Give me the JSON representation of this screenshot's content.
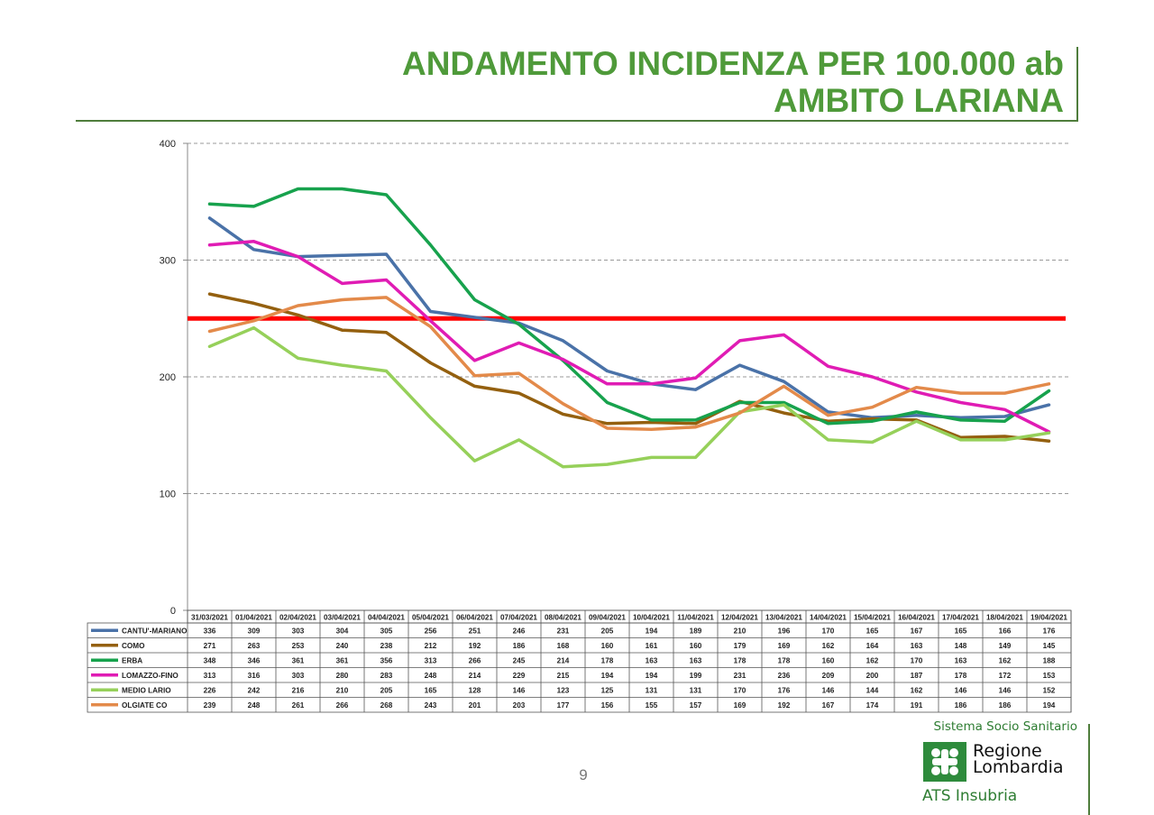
{
  "title": {
    "line1": "ANDAMENTO INCIDENZA PER 100.000 ab",
    "line2": "AMBITO LARIANA"
  },
  "page_number": "9",
  "logo": {
    "top_text": "Sistema Socio Sanitario",
    "region_line1": "Regione",
    "region_line2": "Lombardia",
    "ats": "ATS Insubria"
  },
  "colors": {
    "title": "#4f9a3a",
    "threshold": "#ff0000",
    "logo_green": "#2e8b3c"
  },
  "chart_data": {
    "type": "line",
    "categories": [
      "31/03/2021",
      "01/04/2021",
      "02/04/2021",
      "03/04/2021",
      "04/04/2021",
      "05/04/2021",
      "06/04/2021",
      "07/04/2021",
      "08/04/2021",
      "09/04/2021",
      "10/04/2021",
      "11/04/2021",
      "12/04/2021",
      "13/04/2021",
      "14/04/2021",
      "15/04/2021",
      "16/04/2021",
      "17/04/2021",
      "18/04/2021",
      "19/04/2021"
    ],
    "ylim": [
      0,
      400
    ],
    "yticks": [
      0,
      100,
      200,
      300,
      400
    ],
    "grid": true,
    "threshold": 250,
    "legend": "data-table",
    "series": [
      {
        "name": "CANTU'-MARIANO",
        "color": "#4a72a8",
        "values": [
          336,
          309,
          303,
          304,
          305,
          256,
          251,
          246,
          231,
          205,
          194,
          189,
          210,
          196,
          170,
          165,
          167,
          165,
          166,
          176
        ]
      },
      {
        "name": "COMO",
        "color": "#94600f",
        "values": [
          271,
          263,
          253,
          240,
          238,
          212,
          192,
          186,
          168,
          160,
          161,
          160,
          179,
          169,
          162,
          164,
          163,
          148,
          149,
          145
        ]
      },
      {
        "name": "ERBA",
        "color": "#17a24d",
        "values": [
          348,
          346,
          361,
          361,
          356,
          313,
          266,
          245,
          214,
          178,
          163,
          163,
          178,
          178,
          160,
          162,
          170,
          163,
          162,
          188
        ]
      },
      {
        "name": "LOMAZZO-FINO",
        "color": "#e01cb4",
        "values": [
          313,
          316,
          303,
          280,
          283,
          248,
          214,
          229,
          215,
          194,
          194,
          199,
          231,
          236,
          209,
          200,
          187,
          178,
          172,
          153
        ]
      },
      {
        "name": "MEDIO LARIO",
        "color": "#96d05a",
        "values": [
          226,
          242,
          216,
          210,
          205,
          165,
          128,
          146,
          123,
          125,
          131,
          131,
          170,
          176,
          146,
          144,
          162,
          146,
          146,
          152
        ]
      },
      {
        "name": "OLGIATE CO",
        "color": "#e38a4a",
        "values": [
          239,
          248,
          261,
          266,
          268,
          243,
          201,
          203,
          177,
          156,
          155,
          157,
          169,
          192,
          167,
          174,
          191,
          186,
          186,
          194
        ]
      }
    ]
  }
}
